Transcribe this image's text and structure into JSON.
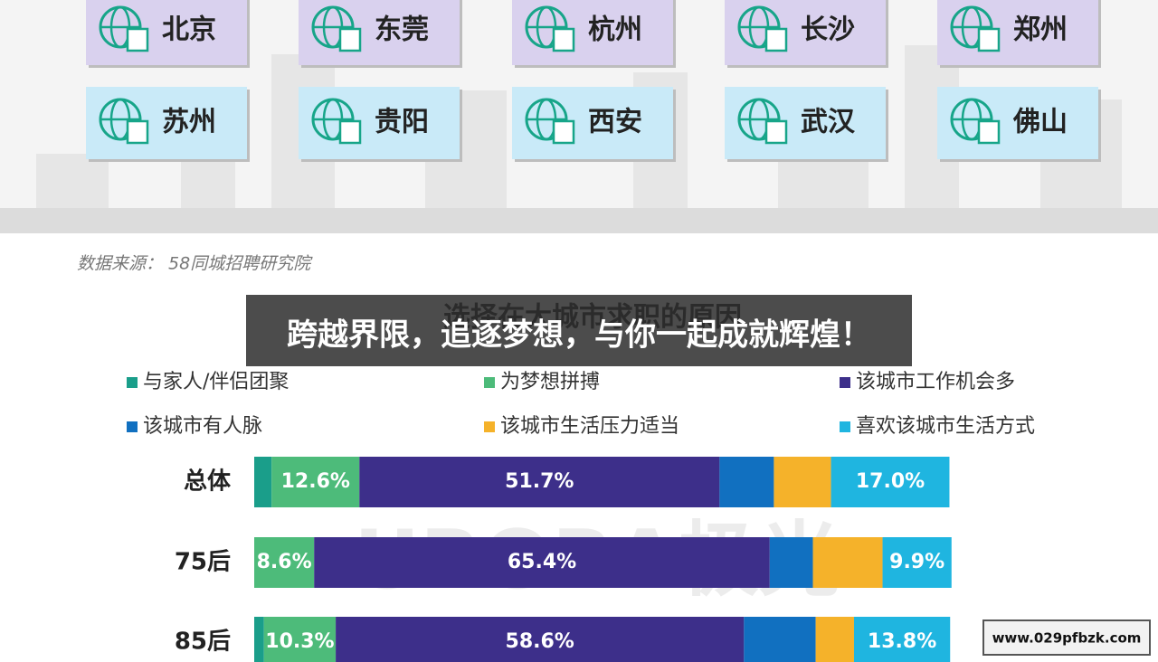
{
  "cities": {
    "row1": [
      "北京",
      "东莞",
      "杭州",
      "长沙",
      "郑州"
    ],
    "row2": [
      "苏州",
      "贵阳",
      "西安",
      "武汉",
      "佛山"
    ]
  },
  "source": "数据来源： 58同城招聘研究院",
  "watermark": "URORA极光",
  "banner": "跨越界限，追逐梦想，与你一起成就辉煌！",
  "badge": "www.029pfbzk.com",
  "chart_data": {
    "type": "stacked-bar-horizontal",
    "title": "选择在大城市求职的原因",
    "categories": [
      "总体",
      "75后",
      "85后"
    ],
    "xlim": [
      0,
      100
    ],
    "series": [
      {
        "name": "与家人/伴侣团聚",
        "color": "#1a9e8a",
        "values": [
          2.5,
          0,
          1.4
        ]
      },
      {
        "name": "为梦想拼搏",
        "color": "#4dbb7a",
        "values": [
          12.6,
          8.6,
          10.3
        ],
        "value_labels": [
          "12.6%",
          "8.6%",
          "10.3%"
        ]
      },
      {
        "name": "该城市工作机会多",
        "color": "#3d2f8a",
        "values": [
          51.7,
          65.4,
          58.6
        ],
        "value_labels": [
          "51.7%",
          "65.4%",
          "58.6%"
        ]
      },
      {
        "name": "该城市有人脉",
        "color": "#1170c0",
        "values": [
          7.8,
          6.2,
          10.3
        ]
      },
      {
        "name": "该城市生活压力适当",
        "color": "#f5b22a",
        "values": [
          8.2,
          10.0,
          5.5
        ]
      },
      {
        "name": "喜欢该城市生活方式",
        "color": "#1fb5e0",
        "values": [
          17.0,
          9.9,
          13.8
        ],
        "value_labels": [
          "17.0%",
          "9.9%",
          "13.8%"
        ]
      }
    ]
  }
}
